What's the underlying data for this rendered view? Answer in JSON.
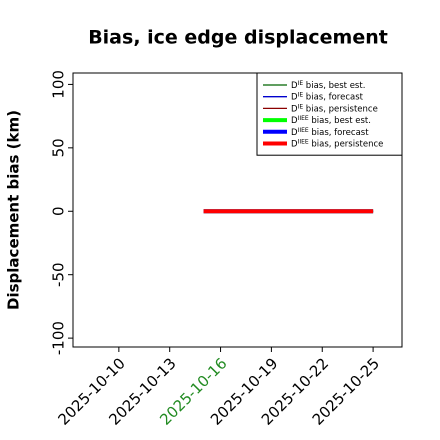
{
  "chart_data": {
    "type": "line",
    "title": "Bias, ice edge displacement",
    "y_label": "Displacement bias (km)",
    "x": [
      "2025-10-15",
      "2025-10-16",
      "2025-10-17",
      "2025-10-18",
      "2025-10-19",
      "2025-10-20",
      "2025-10-21",
      "2025-10-22",
      "2025-10-23",
      "2025-10-24",
      "2025-10-25"
    ],
    "series": [
      {
        "name": "DIE bias, best est.",
        "color": "#006400",
        "width": 1.3,
        "values": [
          0,
          0,
          0,
          0,
          0,
          0,
          0,
          0,
          0,
          0,
          0
        ]
      },
      {
        "name": "DIE bias, forecast",
        "color": "#0000cd",
        "width": 1.3,
        "values": [
          0,
          0,
          0,
          0,
          0,
          0,
          0,
          0,
          0,
          0,
          0
        ]
      },
      {
        "name": "DIE bias, persistence",
        "color": "#8b0000",
        "width": 1.3,
        "values": [
          0,
          0,
          0,
          0,
          0,
          0,
          0,
          0,
          0,
          0,
          0
        ]
      },
      {
        "name": "DIIEE bias, best est.",
        "color": "#00ff00",
        "width": 4,
        "values": [
          0,
          0,
          0,
          0,
          0,
          0,
          0,
          0,
          0,
          0,
          0
        ]
      },
      {
        "name": "DIIEE bias, forecast",
        "color": "#0000ff",
        "width": 4,
        "values": [
          0,
          0,
          0,
          0,
          0,
          0,
          0,
          0,
          0,
          0,
          0
        ]
      },
      {
        "name": "DIIEE bias, persistence",
        "color": "#ff0000",
        "width": 4,
        "values": [
          0,
          0,
          0,
          0,
          0,
          0,
          0,
          0,
          0,
          0,
          0
        ]
      }
    ],
    "xlim": [
      "2025-10-07",
      "2025-10-27"
    ],
    "xticks": [
      "2025-10-10",
      "2025-10-13",
      "2025-10-16",
      "2025-10-19",
      "2025-10-22",
      "2025-10-25"
    ],
    "xtick_highlight": {
      "tick": "2025-10-16",
      "color": "#228b22"
    },
    "ylim": [
      -107,
      109
    ],
    "yticks": [
      -100,
      -50,
      0,
      50,
      100
    ],
    "legend": "upper right"
  }
}
